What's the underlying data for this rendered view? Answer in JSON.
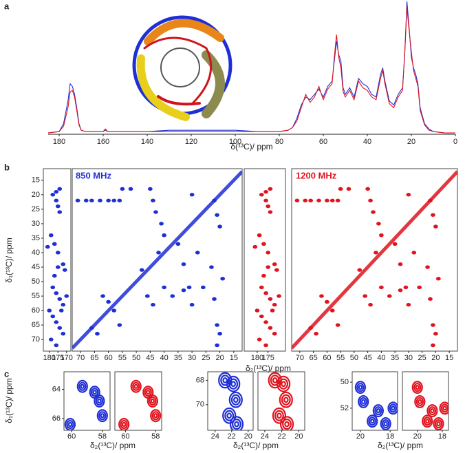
{
  "chart_data": [
    {
      "type": "line",
      "panel": "a",
      "x_label": "δ(¹³C)/ ppm",
      "xlim": [
        185,
        0
      ],
      "ylim": [
        0,
        100
      ],
      "xticks": [
        180,
        160,
        140,
        120,
        100,
        80,
        60,
        40,
        20,
        0
      ],
      "x": [
        185,
        180,
        178,
        176,
        175,
        174,
        173,
        172,
        171,
        170,
        168,
        165,
        160,
        159,
        158,
        155,
        150,
        140,
        130,
        120,
        110,
        100,
        90,
        80,
        76,
        74,
        72,
        70,
        68,
        66,
        64,
        62,
        60,
        58,
        56,
        55,
        54,
        53,
        52,
        51,
        50,
        48,
        46,
        44,
        42,
        40,
        38,
        36,
        34,
        33,
        32,
        30,
        28,
        26,
        24,
        23,
        22,
        21,
        20,
        19,
        18,
        17,
        16,
        14,
        12,
        10,
        5,
        0
      ],
      "series": [
        {
          "color": "#1f2fd6",
          "values": [
            1,
            2,
            8,
            25,
            38,
            36,
            30,
            20,
            8,
            3,
            2,
            2,
            2,
            4,
            2,
            2,
            2,
            2,
            3,
            3,
            3,
            3,
            2,
            2,
            3,
            5,
            12,
            22,
            28,
            26,
            30,
            34,
            28,
            36,
            40,
            55,
            70,
            60,
            55,
            35,
            30,
            35,
            28,
            42,
            38,
            36,
            30,
            28,
            45,
            50,
            40,
            25,
            22,
            30,
            35,
            60,
            100,
            80,
            58,
            50,
            45,
            38,
            20,
            8,
            4,
            2,
            1,
            1
          ]
        },
        {
          "color": "#e0141e",
          "values": [
            1,
            2,
            6,
            20,
            32,
            33,
            28,
            18,
            7,
            3,
            2,
            2,
            2,
            3,
            2,
            2,
            2,
            2,
            2,
            2,
            2,
            2,
            2,
            2,
            3,
            5,
            10,
            20,
            30,
            24,
            28,
            36,
            26,
            34,
            38,
            58,
            75,
            58,
            50,
            32,
            28,
            33,
            26,
            40,
            35,
            33,
            28,
            26,
            42,
            48,
            38,
            23,
            20,
            28,
            33,
            62,
            95,
            78,
            62,
            48,
            42,
            36,
            18,
            7,
            3,
            2,
            1,
            1
          ]
        }
      ]
    },
    {
      "type": "scatter",
      "panel": "b",
      "y_label": "δ₁(¹³C)/ ppm",
      "color": "#1f2fd6",
      "xlim": [
        183.5,
        167.5
      ],
      "ylim": [
        11,
        74
      ],
      "xticks": [
        180,
        175,
        170
      ],
      "yticks": [
        15,
        20,
        25,
        30,
        35,
        40,
        45,
        50,
        55,
        60,
        65,
        70
      ],
      "x": [
        178,
        176,
        174,
        176,
        175,
        174,
        179,
        177,
        175,
        172,
        171,
        181,
        178,
        176,
        174,
        172,
        170,
        180,
        178,
        176,
        174,
        172,
        179,
        176,
        173,
        177,
        175
      ],
      "y": [
        20,
        19,
        18,
        22,
        24,
        26,
        34,
        37,
        40,
        44,
        46,
        38,
        52,
        54,
        56,
        58,
        55,
        60,
        62,
        64,
        66,
        68,
        70,
        72,
        60,
        48,
        45
      ]
    },
    {
      "type": "scatter",
      "title": "850 MHz",
      "x_label": "δ₂(¹³C)/ ppm",
      "color": "#1f2fd6",
      "diagonal": true,
      "xlim": [
        73,
        12
      ],
      "ylim": [
        11,
        74
      ],
      "xticks": [
        70,
        65,
        60,
        55,
        50,
        45,
        40,
        35,
        30,
        25,
        20,
        15
      ],
      "x": [
        71,
        68,
        66,
        63,
        60,
        58,
        56,
        55,
        52,
        45,
        44,
        43,
        41,
        40,
        42,
        35,
        33,
        30,
        28,
        22,
        21,
        20,
        23,
        19,
        26,
        44,
        46,
        48,
        62,
        60,
        58,
        56,
        64,
        66,
        40,
        37,
        33,
        31,
        30,
        22,
        21,
        20,
        21
      ],
      "y": [
        22,
        22,
        22,
        22,
        22,
        22,
        22,
        18,
        18,
        18,
        22,
        26,
        30,
        34,
        40,
        37,
        44,
        20,
        40,
        22,
        27,
        31,
        45,
        49,
        52,
        58,
        55,
        46,
        55,
        57,
        60,
        65,
        68,
        66,
        52,
        55,
        53,
        52,
        58,
        56,
        65,
        68,
        72
      ]
    },
    {
      "type": "scatter",
      "color": "#e0141e",
      "xlim": [
        186,
        167
      ],
      "ylim": [
        11,
        74
      ],
      "xticks": [
        180,
        175
      ],
      "x": [
        178,
        176,
        174,
        176,
        175,
        174,
        179,
        177,
        175,
        172,
        171,
        181,
        178,
        176,
        174,
        172,
        170,
        180,
        178,
        176,
        174,
        172,
        179,
        176,
        173,
        177,
        175
      ],
      "y": [
        20,
        19,
        18,
        22,
        24,
        26,
        34,
        37,
        40,
        44,
        46,
        38,
        52,
        54,
        56,
        58,
        55,
        60,
        62,
        64,
        66,
        68,
        70,
        72,
        60,
        48,
        45
      ]
    },
    {
      "type": "scatter",
      "title": "1200 MHz",
      "color": "#e0141e",
      "diagonal": true,
      "xlim": [
        73,
        12
      ],
      "ylim": [
        11,
        74
      ],
      "xticks": [
        70,
        65,
        60,
        55,
        50,
        45,
        40,
        35,
        30,
        25,
        20,
        15
      ],
      "x": [
        71,
        68,
        66,
        63,
        60,
        58,
        56,
        55,
        52,
        45,
        44,
        43,
        41,
        40,
        42,
        35,
        33,
        30,
        28,
        22,
        21,
        20,
        23,
        19,
        26,
        44,
        46,
        48,
        62,
        60,
        58,
        56,
        64,
        66,
        40,
        37,
        33,
        31,
        30,
        22,
        21,
        20,
        21
      ],
      "y": [
        22,
        22,
        22,
        22,
        22,
        22,
        22,
        18,
        18,
        18,
        22,
        26,
        30,
        34,
        40,
        37,
        44,
        20,
        40,
        22,
        27,
        31,
        45,
        49,
        52,
        58,
        55,
        46,
        55,
        57,
        60,
        65,
        68,
        66,
        52,
        55,
        53,
        52,
        58,
        56,
        65,
        68,
        72
      ]
    },
    {
      "type": "contour",
      "panel": "c",
      "y_label": "δ₁(¹³C)/ ppm",
      "x_label": "δ₂(¹³C)/ ppm",
      "color": "#1f2fd6",
      "xlim": [
        60.5,
        57.5
      ],
      "ylim": [
        62.8,
        66.8
      ],
      "xticks": [
        60,
        58
      ],
      "yticks": [
        64,
        66
      ],
      "x": [
        59.3,
        58.5,
        58.2,
        58.0,
        60.1
      ],
      "y": [
        63.8,
        64.2,
        64.8,
        65.8,
        66.4
      ]
    },
    {
      "type": "contour",
      "color": "#e0141e",
      "xlim": [
        60.7,
        57.6
      ],
      "ylim": [
        62.8,
        66.8
      ],
      "xticks": [
        60,
        58
      ],
      "x": [
        59.3,
        58.5,
        58.2,
        58.0,
        60.1
      ],
      "y": [
        63.8,
        64.2,
        64.8,
        65.8,
        66.4
      ]
    },
    {
      "type": "contour",
      "x_label": "δ₂(¹³C)/ ppm",
      "color": "#1f2fd6",
      "xlim": [
        24.9,
        19.4
      ],
      "ylim": [
        67.3,
        72.1
      ],
      "xticks": [
        24,
        22,
        20
      ],
      "yticks": [
        68,
        70
      ],
      "x": [
        22.8,
        21.8,
        21.5,
        22.3,
        21.4
      ],
      "y": [
        68.0,
        68.3,
        69.6,
        70.9,
        71.6
      ]
    },
    {
      "type": "contour",
      "color": "#e0141e",
      "xlim": [
        24.8,
        19.3
      ],
      "ylim": [
        67.3,
        72.1
      ],
      "xticks": [
        24,
        22,
        20
      ],
      "x": [
        22.8,
        21.8,
        21.5,
        22.3,
        21.4
      ],
      "y": [
        68.0,
        68.3,
        69.6,
        70.9,
        71.6
      ]
    },
    {
      "type": "contour",
      "x_label": "δ₂(¹³C)/ ppm",
      "color": "#1f2fd6",
      "xlim": [
        20.55,
        17.5
      ],
      "ylim": [
        49.2,
        53.7
      ],
      "xticks": [
        20,
        18
      ],
      "yticks": [
        50,
        52
      ],
      "x": [
        20.0,
        19.8,
        18.8,
        17.8,
        19.2,
        18.3
      ],
      "y": [
        50.4,
        51.5,
        52.2,
        52.0,
        53.0,
        53.2
      ]
    },
    {
      "type": "contour",
      "color": "#e0141e",
      "xlim": [
        21.2,
        17.5
      ],
      "ylim": [
        49.2,
        53.7
      ],
      "xticks": [
        20,
        18
      ],
      "x": [
        20.0,
        19.8,
        18.8,
        17.8,
        19.2,
        18.3
      ],
      "y": [
        50.4,
        51.5,
        52.2,
        52.0,
        53.0,
        53.2
      ]
    }
  ]
}
